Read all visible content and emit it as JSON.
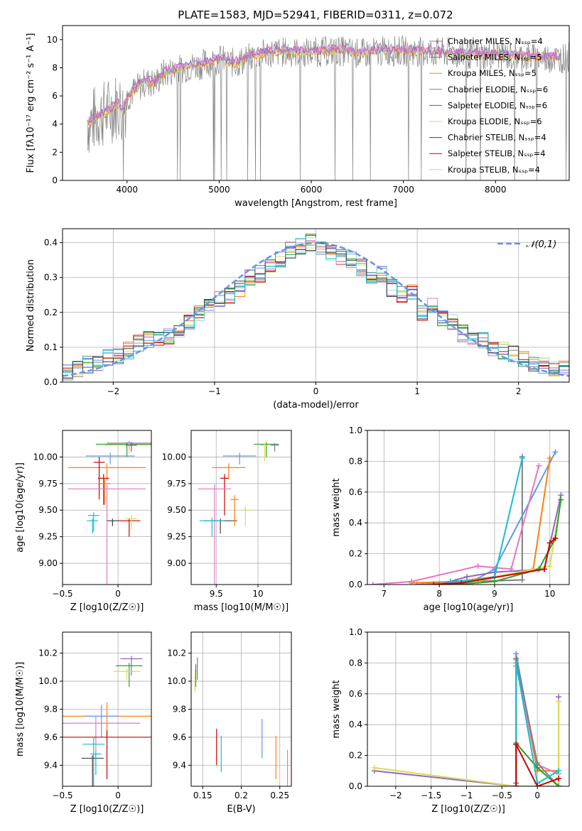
{
  "title": "PLATE=1583, MJD=52941, FIBERID=0311, z=0.072",
  "colors": {
    "grid": "#b0b0b0",
    "axis": "#000000",
    "series": [
      "#808080",
      "#9467bd",
      "#ff7f0e",
      "#808080",
      "#9932cc",
      "#dbdb5a",
      "#404040",
      "#cc0000",
      "#9edae5",
      "#e377c2",
      "#6495ed",
      "#2ca02c",
      "#17becf"
    ]
  },
  "chart_data": [
    {
      "id": "spectrum",
      "type": "line",
      "title": "PLATE=1583, MJD=52941, FIBERID=0311, z=0.072",
      "xlabel": "wavelength [Angstrom, rest frame]",
      "ylabel": "Flux [fλ10⁻¹⁷ erg cm⁻² s⁻¹ A⁻¹]",
      "xlim": [
        3300,
        8800
      ],
      "ylim": [
        0,
        11
      ],
      "xticks": [
        4000,
        5000,
        6000,
        7000,
        8000
      ],
      "yticks": [
        0,
        2,
        4,
        6,
        8,
        10
      ],
      "grid": false,
      "legend_position": "right",
      "legend": [
        "Chabrier MILES, N_SSP=4",
        "Salpeter MILES, N_SSP=5",
        "Kroupa MILES, N_SSP=5",
        "Chabrier ELODIE, N_SSP=6",
        "Salpeter ELODIE, N_SSP=6",
        "Kroupa ELODIE, N_SSP=6",
        "Chabrier STELIB, N_SSP=4",
        "Salpeter STELIB, N_SSP=4",
        "Kroupa STELIB, N_SSP=4"
      ],
      "continuum": [
        [
          3570,
          4.0
        ],
        [
          3700,
          4.6
        ],
        [
          3800,
          4.9
        ],
        [
          3900,
          5.4
        ],
        [
          3960,
          4.9
        ],
        [
          4000,
          5.9
        ],
        [
          4100,
          6.5
        ],
        [
          4200,
          7.0
        ],
        [
          4300,
          6.9
        ],
        [
          4400,
          7.6
        ],
        [
          4500,
          7.8
        ],
        [
          4700,
          8.1
        ],
        [
          4860,
          8.3
        ],
        [
          5000,
          8.6
        ],
        [
          5175,
          8.3
        ],
        [
          5400,
          8.9
        ],
        [
          5600,
          9.1
        ],
        [
          5800,
          9.1
        ],
        [
          6000,
          9.1
        ],
        [
          6300,
          9.2
        ],
        [
          6563,
          9.0
        ],
        [
          6800,
          9.2
        ],
        [
          7000,
          9.2
        ],
        [
          7200,
          9.1
        ],
        [
          7400,
          9.1
        ],
        [
          7600,
          9.0
        ],
        [
          7800,
          8.9
        ],
        [
          8000,
          8.9
        ],
        [
          8200,
          8.8
        ],
        [
          8400,
          8.7
        ],
        [
          8600,
          8.7
        ],
        [
          8800,
          8.7
        ]
      ]
    },
    {
      "id": "residuals",
      "type": "histogram",
      "xlabel": "(data-model)/error",
      "ylabel": "Normed distribution",
      "xlim": [
        -2.5,
        2.5
      ],
      "ylim": [
        0,
        0.44
      ],
      "xticks": [
        -2,
        -1,
        0,
        1,
        2
      ],
      "yticks": [
        0.0,
        0.1,
        0.2,
        0.3,
        0.4
      ],
      "grid": true,
      "legend": [
        "𝒩(0,1)"
      ],
      "legend_position": "top-right",
      "bin_centers": [
        -2.45,
        -2.35,
        -2.25,
        -2.15,
        -2.05,
        -1.95,
        -1.85,
        -1.75,
        -1.65,
        -1.55,
        -1.45,
        -1.35,
        -1.25,
        -1.15,
        -1.05,
        -0.95,
        -0.85,
        -0.75,
        -0.65,
        -0.55,
        -0.45,
        -0.35,
        -0.25,
        -0.15,
        -0.05,
        0.05,
        0.15,
        0.25,
        0.35,
        0.45,
        0.55,
        0.65,
        0.75,
        0.85,
        0.95,
        1.05,
        1.15,
        1.25,
        1.35,
        1.45,
        1.55,
        1.65,
        1.75,
        1.85,
        1.95,
        2.05,
        2.15,
        2.25,
        2.35,
        2.45
      ],
      "histogram_mean": [
        0.03,
        0.035,
        0.05,
        0.055,
        0.07,
        0.075,
        0.09,
        0.11,
        0.12,
        0.125,
        0.13,
        0.15,
        0.17,
        0.2,
        0.22,
        0.24,
        0.25,
        0.27,
        0.3,
        0.31,
        0.33,
        0.35,
        0.38,
        0.39,
        0.4,
        0.38,
        0.37,
        0.36,
        0.35,
        0.33,
        0.3,
        0.31,
        0.27,
        0.25,
        0.26,
        0.2,
        0.22,
        0.18,
        0.17,
        0.14,
        0.13,
        0.12,
        0.09,
        0.09,
        0.08,
        0.07,
        0.05,
        0.05,
        0.04,
        0.04
      ]
    },
    {
      "id": "age-vs-Z",
      "type": "errorbar",
      "xlabel": "Z [log10(Z/Z☉)]",
      "ylabel": "age  [log10(age/yr)]",
      "xlim": [
        -0.5,
        0.3
      ],
      "ylim": [
        8.8,
        10.25
      ],
      "xticks": [
        -0.5,
        0.0
      ],
      "yticks": [
        9.0,
        9.25,
        9.5,
        9.75,
        10.0
      ],
      "grid": true,
      "points": [
        [
          0.08,
          10.12,
          0.28,
          0.02,
          0.12,
          11
        ],
        [
          0.1,
          10.13,
          0.2,
          0.02,
          0.06,
          1
        ],
        [
          0.1,
          10.11,
          0.22,
          0.02,
          0.08,
          5
        ],
        [
          0.12,
          10.11,
          0.05,
          0.03,
          0.06,
          4
        ],
        [
          -0.07,
          10.01,
          0.22,
          0.03,
          0.08,
          10
        ],
        [
          -0.1,
          9.9,
          0.35,
          0.04,
          0.12,
          2
        ],
        [
          -0.17,
          9.95,
          0.05,
          0.05,
          0.35,
          7
        ],
        [
          -0.13,
          9.8,
          0.05,
          0.04,
          0.25,
          7
        ],
        [
          -0.12,
          9.75,
          0.05,
          0.05,
          0.2,
          2
        ],
        [
          -0.1,
          9.7,
          0.35,
          0.04,
          0.9,
          9
        ],
        [
          -0.05,
          9.4,
          0.05,
          0.02,
          0.05,
          6
        ],
        [
          -0.23,
          9.4,
          0.05,
          0.02,
          0.12,
          12
        ],
        [
          -0.22,
          9.45,
          0.05,
          0.03,
          0.15,
          12
        ],
        [
          0.1,
          9.4,
          0.1,
          0.02,
          0.15,
          7
        ],
        [
          0.12,
          9.42,
          0.05,
          0.03,
          0.1,
          5
        ]
      ]
    },
    {
      "id": "age-vs-mass",
      "type": "errorbar",
      "xlabel": "mass [log10(M/M☉)]",
      "ylabel": "",
      "xlim": [
        9.2,
        10.4
      ],
      "ylim": [
        8.8,
        10.25
      ],
      "xticks": [
        9.5,
        10.0
      ],
      "yticks": [
        9.0,
        9.25,
        9.5,
        9.75,
        10.0
      ],
      "grid": true,
      "points": [
        [
          10.1,
          10.12,
          0.15,
          0.02,
          0.12,
          11
        ],
        [
          10.2,
          10.11,
          0.05,
          0.02,
          0.06,
          1
        ],
        [
          10.08,
          10.11,
          0.05,
          0.02,
          0.15,
          5
        ],
        [
          9.78,
          10.01,
          0.2,
          0.03,
          0.08,
          10
        ],
        [
          9.65,
          9.9,
          0.2,
          0.04,
          0.1,
          2
        ],
        [
          9.6,
          9.8,
          0.05,
          0.04,
          0.35,
          7
        ],
        [
          9.48,
          9.7,
          0.2,
          0.04,
          0.9,
          9
        ],
        [
          9.55,
          9.4,
          0.2,
          0.02,
          0.12,
          6
        ],
        [
          9.45,
          9.4,
          0.15,
          0.03,
          0.15,
          12
        ],
        [
          9.72,
          9.6,
          0.05,
          0.04,
          0.25,
          2
        ],
        [
          9.85,
          9.5,
          0.05,
          0.04,
          0.15,
          5
        ]
      ]
    },
    {
      "id": "massweight-vs-age",
      "type": "line",
      "xlabel": "age  [log10(age/yr)]",
      "ylabel": "mass weight",
      "xlim": [
        6.7,
        10.35
      ],
      "ylim": [
        0,
        1.0
      ],
      "xticks": [
        7,
        8,
        9,
        10
      ],
      "yticks": [
        0.0,
        0.2,
        0.4,
        0.6,
        0.8,
        1.0
      ],
      "grid": true,
      "series": [
        {
          "color": 0,
          "x": [
            7.6,
            8.6,
            9.5,
            9.5
          ],
          "y": [
            0.0,
            0.02,
            0.03,
            0.83
          ]
        },
        {
          "color": 10,
          "x": [
            7.7,
            8.6,
            9.0,
            10.1
          ],
          "y": [
            0.0,
            0.02,
            0.1,
            0.86
          ]
        },
        {
          "color": 2,
          "x": [
            7.5,
            8.3,
            9.0,
            9.7,
            10.0
          ],
          "y": [
            0.01,
            0.02,
            0.05,
            0.1,
            0.82
          ]
        },
        {
          "color": 9,
          "x": [
            6.8,
            7.5,
            8.7,
            9.3,
            9.8
          ],
          "y": [
            0.0,
            0.02,
            0.12,
            0.1,
            0.77
          ]
        },
        {
          "color": 1,
          "x": [
            8.0,
            8.5,
            9.0,
            9.9,
            10.2
          ],
          "y": [
            0.0,
            0.05,
            0.08,
            0.1,
            0.58
          ]
        },
        {
          "color": 5,
          "x": [
            8.2,
            8.7,
            9.0,
            10.0,
            10.2
          ],
          "y": [
            0.0,
            0.02,
            0.05,
            0.12,
            0.55
          ]
        },
        {
          "color": 11,
          "x": [
            8.3,
            9.0,
            9.8,
            10.1,
            10.2
          ],
          "y": [
            0.0,
            0.02,
            0.1,
            0.3,
            0.55
          ]
        },
        {
          "color": 12,
          "x": [
            8.2,
            8.7,
            9.0,
            9.5
          ],
          "y": [
            0.02,
            0.03,
            0.05,
            0.82
          ]
        },
        {
          "color": 7,
          "x": [
            7.9,
            8.4,
            9.9,
            10.0,
            10.1
          ],
          "y": [
            0.0,
            0.01,
            0.1,
            0.27,
            0.3
          ]
        }
      ]
    },
    {
      "id": "mass-vs-Z",
      "type": "errorbar",
      "xlabel": "Z [log10(Z/Z☉)]",
      "ylabel": "mass [log10(M/M☉)]",
      "xlim": [
        -0.5,
        0.3
      ],
      "ylim": [
        9.25,
        10.35
      ],
      "xticks": [
        -0.5,
        0.0
      ],
      "yticks": [
        9.4,
        9.6,
        9.8,
        10.0,
        10.2
      ],
      "grid": true,
      "points": [
        [
          0.12,
          10.16,
          0.1,
          0.02,
          0.12,
          1
        ],
        [
          0.1,
          10.11,
          0.12,
          0.02,
          0.15,
          11
        ],
        [
          0.08,
          10.07,
          0.12,
          0.02,
          0.06,
          5
        ],
        [
          -0.1,
          9.75,
          0.4,
          0.1,
          0.15,
          2
        ],
        [
          -0.15,
          9.75,
          0.15,
          0.08,
          0.15,
          10
        ],
        [
          -0.2,
          9.7,
          0.4,
          0.05,
          0.3,
          9
        ],
        [
          -0.1,
          9.6,
          0.4,
          0.05,
          0.3,
          7
        ],
        [
          -0.22,
          9.55,
          0.1,
          0.05,
          0.3,
          12
        ],
        [
          -0.23,
          9.45,
          0.1,
          0.02,
          0.3,
          6
        ],
        [
          -0.2,
          9.48,
          0.05,
          0.02,
          0.15,
          12
        ]
      ]
    },
    {
      "id": "mass-vs-EBV",
      "type": "errorbar",
      "xlabel": "E(B-V)",
      "ylabel": "",
      "xlim": [
        0.135,
        0.265
      ],
      "ylim": [
        9.25,
        10.35
      ],
      "xticks": [
        0.15,
        0.2,
        0.25
      ],
      "yticks": [
        9.4,
        9.6,
        9.8,
        10.0,
        10.2
      ],
      "grid": true,
      "points": [
        [
          0.143,
          10.16,
          0.0,
          0.01,
          0.15,
          1
        ],
        [
          0.141,
          10.11,
          0.0,
          0.01,
          0.15,
          11
        ],
        [
          0.14,
          10.07,
          0.0,
          0.01,
          0.15,
          5
        ],
        [
          0.168,
          9.65,
          0.0,
          0.01,
          0.25,
          7
        ],
        [
          0.174,
          9.6,
          0.0,
          0.01,
          0.25,
          12
        ],
        [
          0.227,
          9.72,
          0.0,
          0.01,
          0.27,
          10
        ],
        [
          0.245,
          9.6,
          0.0,
          0.01,
          0.3,
          2
        ],
        [
          0.26,
          9.5,
          0.0,
          0.01,
          0.3,
          9
        ]
      ]
    },
    {
      "id": "massweight-vs-Z",
      "type": "line",
      "xlabel": "Z [log10(Z/Z☉)]",
      "ylabel": "mass weight",
      "xlim": [
        -2.4,
        0.45
      ],
      "ylim": [
        0,
        1.0
      ],
      "xticks": [
        -2.0,
        -1.5,
        -1.0,
        -0.5,
        0.0
      ],
      "yticks": [
        0.0,
        0.2,
        0.4,
        0.6,
        0.8,
        1.0
      ],
      "grid": true,
      "series": [
        {
          "color": 10,
          "x": [
            -0.3,
            -0.3,
            0.0,
            0.3
          ],
          "y": [
            0.0,
            0.86,
            0.12,
            0.0
          ]
        },
        {
          "color": 2,
          "x": [
            -0.3,
            -0.3,
            0.0,
            0.3
          ],
          "y": [
            0.02,
            0.82,
            0.1,
            0.1
          ]
        },
        {
          "color": 9,
          "x": [
            -0.3,
            -0.3,
            0.0,
            0.3
          ],
          "y": [
            0.0,
            0.78,
            0.14,
            0.08
          ]
        },
        {
          "color": 0,
          "x": [
            -0.3,
            -0.3,
            0.0,
            0.3
          ],
          "y": [
            0.02,
            0.83,
            0.15,
            0.0
          ]
        },
        {
          "color": 1,
          "x": [
            -2.3,
            -0.3,
            0.3,
            0.3
          ],
          "y": [
            0.1,
            0.0,
            0.0,
            0.58
          ]
        },
        {
          "color": 5,
          "x": [
            -2.3,
            -0.3,
            0.3,
            0.3
          ],
          "y": [
            0.12,
            0.0,
            0.0,
            0.55
          ]
        },
        {
          "color": 11,
          "x": [
            -0.3,
            -0.3,
            0.0,
            0.3
          ],
          "y": [
            0.0,
            0.28,
            0.12,
            0.0
          ]
        },
        {
          "color": 12,
          "x": [
            -0.3,
            -0.3,
            0.0,
            0.3
          ],
          "y": [
            0.0,
            0.8,
            0.02,
            0.1
          ]
        },
        {
          "color": 7,
          "x": [
            -0.3,
            -0.3,
            0.0,
            0.3
          ],
          "y": [
            0.0,
            0.27,
            0.0,
            0.05
          ]
        }
      ]
    }
  ]
}
